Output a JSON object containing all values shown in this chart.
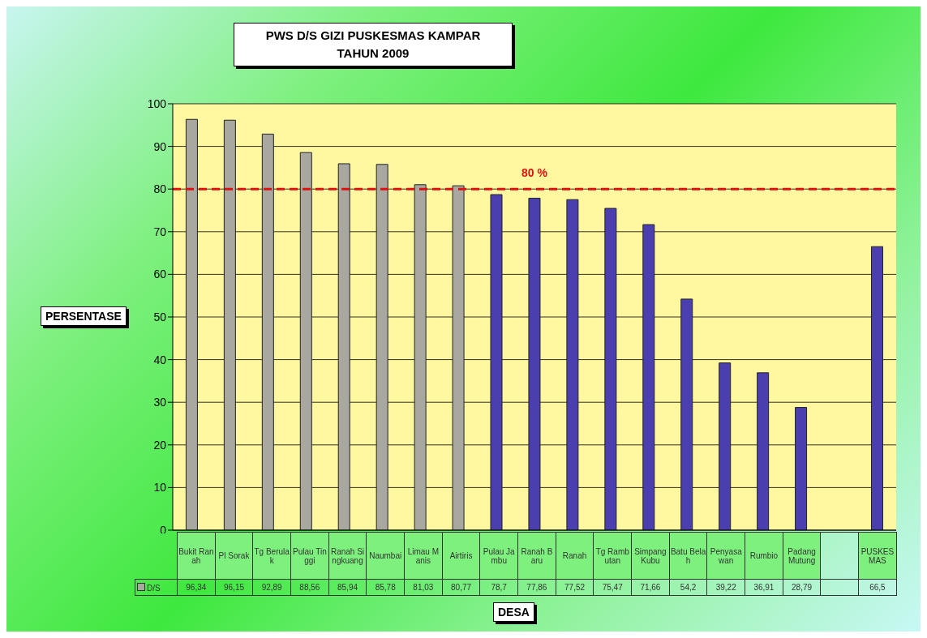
{
  "chart_data": {
    "type": "bar",
    "title": "PWS D/S GIZI PUSKESMAS KAMPAR\nTAHUN 2009",
    "xlabel": "DESA",
    "ylabel": "PERSENTASE",
    "categories": [
      "Bukit Ranah",
      "Pl Sorak",
      "Tg Berulak",
      "Pulau Tinggi",
      "Ranah Singkuang",
      "Naumbai",
      "Limau Manis",
      "Airtiris",
      "Pulau Jambu",
      "Ranah Baru",
      "Ranah",
      "Tg Rambutan",
      "Simpang Kubu",
      "Batu Belah",
      "Penyasawan",
      "Rumbio",
      "Padang Mutung",
      null,
      "PUSKESMAS"
    ],
    "series": [
      {
        "name": "D/S",
        "values": [
          96.34,
          96.15,
          92.89,
          88.56,
          85.94,
          85.78,
          81.03,
          80.77,
          78.7,
          77.86,
          77.52,
          75.47,
          71.66,
          54.2,
          39.22,
          36.91,
          28.79,
          null,
          66.5
        ],
        "colors": [
          "#a8a8a0",
          "#a8a8a0",
          "#a8a8a0",
          "#a8a8a0",
          "#a8a8a0",
          "#a8a8a0",
          "#a8a8a0",
          "#a8a8a0",
          "#4b3fb0",
          "#4b3fb0",
          "#4b3fb0",
          "#4b3fb0",
          "#4b3fb0",
          "#4b3fb0",
          "#4b3fb0",
          "#4b3fb0",
          "#4b3fb0",
          "#4b3fb0",
          "#4b3fb0"
        ],
        "value_labels": [
          "96,34",
          "96,15",
          "92,89",
          "88,56",
          "85,94",
          "85,78",
          "81,03",
          "80,77",
          "78,7",
          "77,86",
          "77,52",
          "75,47",
          "71,66",
          "54,2",
          "39,22",
          "36,91",
          "28,79",
          null,
          "66,5"
        ]
      }
    ],
    "ylim": [
      0,
      100
    ],
    "yticks": [
      0,
      10,
      20,
      30,
      40,
      50,
      60,
      70,
      80,
      90,
      100
    ],
    "grid": "y",
    "legend": "bottom left",
    "ref_lines": [
      {
        "axis": "y",
        "value": 80,
        "label": "80 %",
        "color": "#dd1111",
        "line_style": "dashed"
      }
    ]
  }
}
